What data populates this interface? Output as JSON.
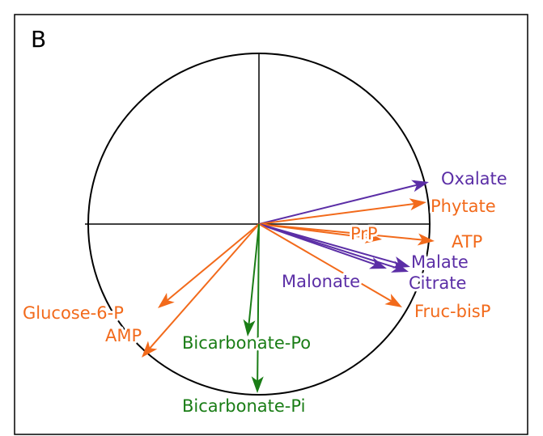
{
  "panel_label": "B",
  "variables": [
    {
      "label": "Oxalate",
      "color": "#5b2ea6"
    },
    {
      "label": "Phytate",
      "color": "#f26a1b"
    },
    {
      "label": "PrP",
      "color": "#f26a1b"
    },
    {
      "label": "ATP",
      "color": "#f26a1b"
    },
    {
      "label": "Malate",
      "color": "#5b2ea6"
    },
    {
      "label": "Citrate",
      "color": "#5b2ea6"
    },
    {
      "label": "Malonate",
      "color": "#5b2ea6"
    },
    {
      "label": "Fruc-bisP",
      "color": "#f26a1b"
    },
    {
      "label": "Glucose-6-P",
      "color": "#f26a1b"
    },
    {
      "label": "AMP",
      "color": "#f26a1b"
    },
    {
      "label": "Bicarbonate-Po",
      "color": "#1a7d16"
    },
    {
      "label": "Bicarbonate-Pi",
      "color": "#1a7d16"
    }
  ]
}
